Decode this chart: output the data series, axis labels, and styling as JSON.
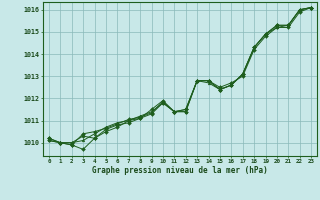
{
  "x": [
    0,
    1,
    2,
    3,
    4,
    5,
    6,
    7,
    8,
    9,
    10,
    11,
    12,
    13,
    14,
    15,
    16,
    17,
    18,
    19,
    20,
    21,
    22,
    23
  ],
  "line1": [
    1010.2,
    1010.0,
    1010.0,
    1010.3,
    1010.2,
    1010.5,
    1010.7,
    1011.0,
    1011.1,
    1011.3,
    1011.8,
    1011.4,
    1011.4,
    1012.8,
    1012.8,
    1012.4,
    1012.6,
    1013.1,
    1014.3,
    1014.9,
    1015.3,
    1015.3,
    1016.0,
    1016.1
  ],
  "line2": [
    1010.1,
    1010.0,
    1009.9,
    1009.7,
    1010.2,
    1010.6,
    1010.8,
    1010.9,
    1011.1,
    1011.5,
    1011.9,
    1011.4,
    1011.5,
    1012.8,
    1012.8,
    1012.5,
    1012.7,
    1013.0,
    1014.2,
    1014.8,
    1015.2,
    1015.2,
    1015.9,
    1016.1
  ],
  "line3": [
    1010.1,
    1010.0,
    1010.0,
    1010.1,
    1010.4,
    1010.7,
    1010.9,
    1011.0,
    1011.2,
    1011.4,
    1011.8,
    1011.4,
    1011.4,
    1012.8,
    1012.7,
    1012.4,
    1012.6,
    1013.1,
    1014.3,
    1014.9,
    1015.2,
    1015.3,
    1016.0,
    1016.1
  ],
  "line4": [
    1010.2,
    1010.0,
    1009.9,
    1010.4,
    1010.5,
    1010.65,
    1010.85,
    1011.05,
    1011.15,
    1011.35,
    1011.85,
    1011.4,
    1011.5,
    1012.8,
    1012.8,
    1012.4,
    1012.6,
    1013.1,
    1014.3,
    1014.9,
    1015.3,
    1015.3,
    1016.0,
    1016.1
  ],
  "line_color": "#1e5e1e",
  "bg_color": "#c8e8e8",
  "grid_color": "#8ababa",
  "xlabel": "Graphe pression niveau de la mer (hPa)",
  "xlabel_color": "#1a4a1a",
  "yticks": [
    1010,
    1011,
    1012,
    1013,
    1014,
    1015,
    1016
  ],
  "xticks": [
    0,
    1,
    2,
    3,
    4,
    5,
    6,
    7,
    8,
    9,
    10,
    11,
    12,
    13,
    14,
    15,
    16,
    17,
    18,
    19,
    20,
    21,
    22,
    23
  ],
  "ylim": [
    1009.4,
    1016.35
  ],
  "xlim": [
    -0.5,
    23.5
  ]
}
